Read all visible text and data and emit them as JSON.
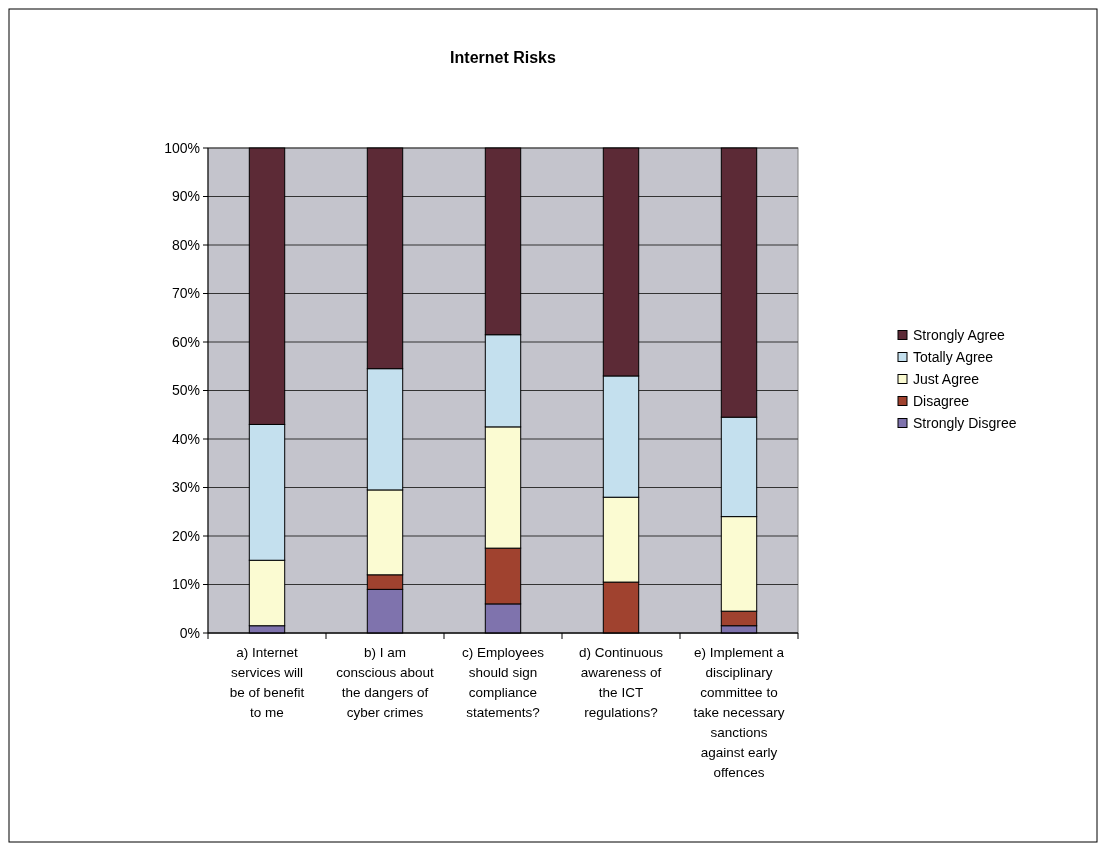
{
  "chart_data": {
    "type": "bar",
    "title": "Internet Risks",
    "stacked": true,
    "categories": [
      "a) Internet services will be of benefit to me",
      "b) I am conscious about the dangers of cyber crimes",
      "c) Employees should sign compliance statements?",
      "d) Continuous awareness of the ICT regulations?",
      "e) Implement a disciplinary committee to take necessary sanctions against early offences"
    ],
    "series": [
      {
        "name": "Strongly Disgree",
        "color": "#7f73ad",
        "values": [
          1.5,
          9,
          6,
          0,
          1.5
        ]
      },
      {
        "name": "Disagree",
        "color": "#a0422f",
        "values": [
          0,
          3,
          11.5,
          10.5,
          3
        ]
      },
      {
        "name": "Just Agree",
        "color": "#fbfbd2",
        "values": [
          13.5,
          17.5,
          25,
          17.5,
          19.5
        ]
      },
      {
        "name": "Totally Agree",
        "color": "#c4e0ee",
        "values": [
          28,
          25,
          19,
          25,
          20.5
        ]
      },
      {
        "name": "Strongly Agree",
        "color": "#5c2a36",
        "values": [
          57,
          45.5,
          38.5,
          47,
          55.5
        ]
      }
    ],
    "ylim": [
      0,
      100
    ],
    "yticks": [
      {
        "value": 0,
        "label": "0%"
      },
      {
        "value": 10,
        "label": "10%"
      },
      {
        "value": 20,
        "label": "20%"
      },
      {
        "value": 30,
        "label": "30%"
      },
      {
        "value": 40,
        "label": "40%"
      },
      {
        "value": 50,
        "label": "50%"
      },
      {
        "value": 60,
        "label": "60%"
      },
      {
        "value": 70,
        "label": "70%"
      },
      {
        "value": 80,
        "label": "80%"
      },
      {
        "value": 90,
        "label": "90%"
      },
      {
        "value": 100,
        "label": "100%"
      }
    ],
    "grid": "y",
    "legend": "right"
  }
}
